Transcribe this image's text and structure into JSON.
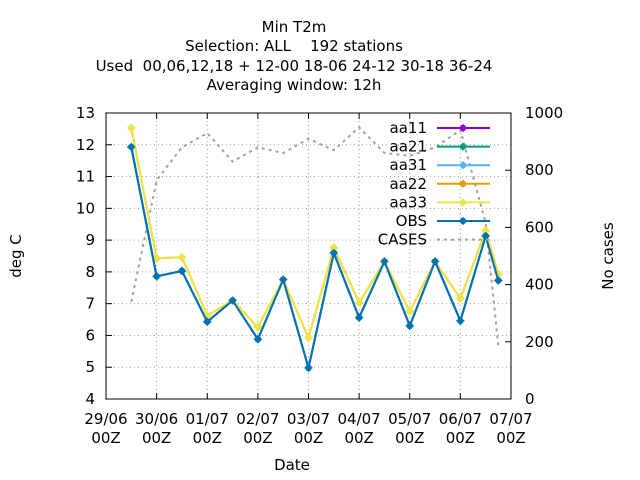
{
  "chart_data": {
    "type": "line",
    "title_lines": [
      "Min T2m",
      "Selection: ALL    192 stations",
      "Used  00,06,12,18 + 12-00 18-06 24-12 30-18 36-24",
      "Averaging window: 12h"
    ],
    "xlabel": "Date",
    "ylabel": "deg C",
    "y2label": "No cases",
    "x_ticks": [
      {
        "line1": "29/06",
        "line2": "00Z"
      },
      {
        "line1": "30/06",
        "line2": "00Z"
      },
      {
        "line1": "01/07",
        "line2": "00Z"
      },
      {
        "line1": "02/07",
        "line2": "00Z"
      },
      {
        "line1": "03/07",
        "line2": "00Z"
      },
      {
        "line1": "04/07",
        "line2": "00Z"
      },
      {
        "line1": "05/07",
        "line2": "00Z"
      },
      {
        "line1": "06/07",
        "line2": "00Z"
      },
      {
        "line1": "07/07",
        "line2": "00Z"
      }
    ],
    "x_hours": [
      12,
      24,
      36,
      48,
      60,
      72,
      84,
      96,
      108,
      120,
      132,
      144,
      156,
      168,
      180,
      186
    ],
    "xlim_hours": [
      0,
      192
    ],
    "ylim": [
      4,
      13
    ],
    "y_ticks": [
      4,
      5,
      6,
      7,
      8,
      9,
      10,
      11,
      12,
      13
    ],
    "y2lim": [
      0,
      1000
    ],
    "y2_ticks": [
      0,
      200,
      400,
      600,
      800,
      1000
    ],
    "grid": true,
    "legend_position": "top-right",
    "series": [
      {
        "name": "aa11",
        "color": "#9400d3",
        "values": [
          11.93,
          7.86,
          8.03,
          6.43,
          7.1,
          5.88,
          7.76,
          4.98,
          8.6,
          6.56,
          8.33,
          6.3,
          8.33,
          6.46,
          9.13,
          7.73
        ]
      },
      {
        "name": "aa21",
        "color": "#009e73",
        "values": [
          11.93,
          7.86,
          8.03,
          6.43,
          7.1,
          5.88,
          7.76,
          4.98,
          8.6,
          6.56,
          8.33,
          6.3,
          8.33,
          6.46,
          9.13,
          7.73
        ]
      },
      {
        "name": "aa31",
        "color": "#56b4e9",
        "values": [
          11.93,
          7.86,
          8.03,
          6.43,
          7.1,
          5.88,
          7.76,
          4.98,
          8.6,
          6.56,
          8.33,
          6.3,
          8.33,
          6.46,
          9.13,
          7.73
        ]
      },
      {
        "name": "aa22",
        "color": "#e69f00",
        "values": [
          12.53,
          8.43,
          8.46,
          6.63,
          7.1,
          6.26,
          7.76,
          5.93,
          8.76,
          7.03,
          8.33,
          6.76,
          8.33,
          7.16,
          9.3,
          7.93
        ]
      },
      {
        "name": "aa33",
        "color": "#f0e442",
        "values": [
          12.53,
          8.43,
          8.46,
          6.63,
          7.1,
          6.26,
          7.76,
          5.93,
          8.76,
          7.03,
          8.33,
          6.76,
          8.33,
          7.16,
          9.3,
          7.93
        ]
      },
      {
        "name": "OBS",
        "color": "#0072b2",
        "values": [
          11.93,
          7.86,
          8.03,
          6.43,
          7.1,
          5.88,
          7.76,
          4.98,
          8.6,
          6.56,
          8.33,
          6.3,
          8.33,
          6.46,
          9.13,
          7.73
        ]
      }
    ],
    "cases": {
      "name": "CASES",
      "color": "#a0a0a0",
      "x_hours": [
        12,
        24,
        36,
        48,
        60,
        72,
        84,
        96,
        108,
        120,
        132,
        144,
        156,
        168,
        180,
        186
      ],
      "values": [
        340,
        765,
        880,
        930,
        830,
        880,
        860,
        910,
        870,
        950,
        860,
        850,
        880,
        940,
        615,
        185
      ]
    }
  }
}
